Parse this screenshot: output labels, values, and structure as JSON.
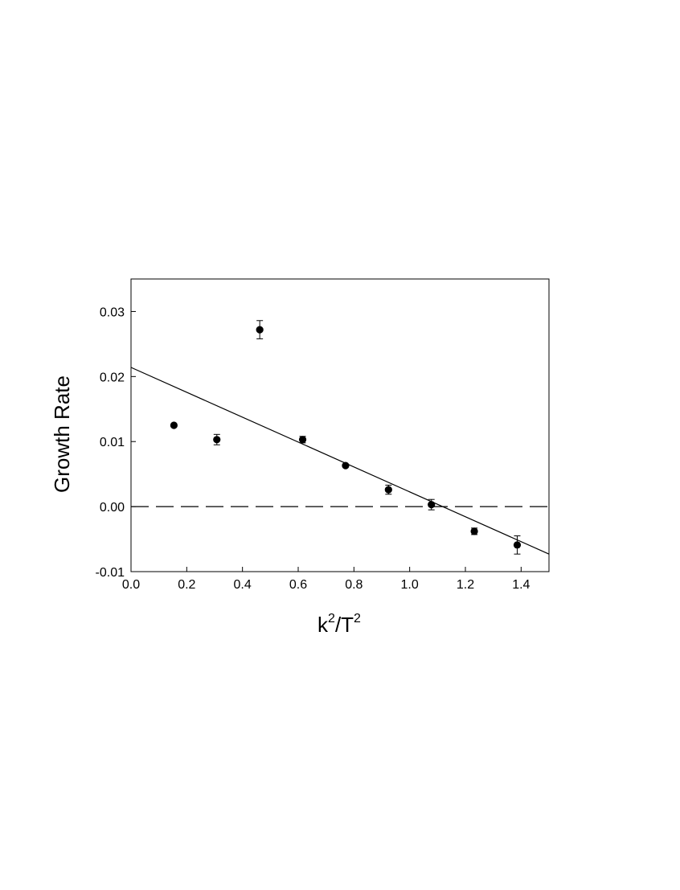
{
  "chart_data": {
    "type": "scatter",
    "xlabel_parts": [
      "k",
      "2",
      "/T",
      "2"
    ],
    "ylabel": "Growth Rate",
    "xlim": [
      0.0,
      1.5
    ],
    "ylim": [
      -0.01,
      0.035
    ],
    "x_ticks": [
      0.0,
      0.2,
      0.4,
      0.6,
      0.8,
      1.0,
      1.2,
      1.4
    ],
    "x_tick_labels": [
      "0.0",
      "0.2",
      "0.4",
      "0.6",
      "0.8",
      "1.0",
      "1.2",
      "1.4"
    ],
    "y_ticks": [
      -0.01,
      0.0,
      0.01,
      0.02,
      0.03
    ],
    "y_tick_labels": [
      "-0.01",
      "0.00",
      "0.01",
      "0.02",
      "0.03"
    ],
    "grid": false,
    "series": [
      {
        "points": [
          {
            "x": 0.154,
            "y": 0.0125,
            "err": 0.0
          },
          {
            "x": 0.308,
            "y": 0.0103,
            "err": 0.0008
          },
          {
            "x": 0.462,
            "y": 0.0272,
            "err": 0.0014
          },
          {
            "x": 0.616,
            "y": 0.0103,
            "err": 0.0005
          },
          {
            "x": 0.77,
            "y": 0.0063,
            "err": 0.0
          },
          {
            "x": 0.924,
            "y": 0.0026,
            "err": 0.0007
          },
          {
            "x": 1.078,
            "y": 0.0003,
            "err": 0.0008
          },
          {
            "x": 1.232,
            "y": -0.0038,
            "err": 0.0005
          },
          {
            "x": 1.386,
            "y": -0.0059,
            "err": 0.0014
          }
        ],
        "color": "#000000"
      }
    ],
    "fit_line": {
      "x": [
        0.0,
        1.5
      ],
      "y": [
        0.0214,
        -0.0073
      ],
      "color": "#000000",
      "style": "solid"
    },
    "reference_line": {
      "y": 0.0,
      "color": "#000000",
      "style": "dashed"
    }
  }
}
